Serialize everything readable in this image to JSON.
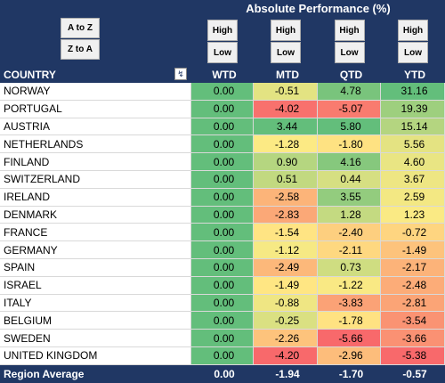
{
  "sort_buttons": [
    "A to Z",
    "Z to A"
  ],
  "header": {
    "title": "Absolute Performance (%)",
    "buttons": [
      {
        "high": "High",
        "low": "Low"
      },
      {
        "high": "High",
        "low": "Low"
      },
      {
        "high": "High",
        "low": "Low"
      },
      {
        "high": "High",
        "low": "Low"
      }
    ]
  },
  "columns": [
    "COUNTRY",
    "WTD",
    "MTD",
    "QTD",
    "YTD"
  ],
  "rows": [
    [
      "NORWAY",
      "0.00",
      "-0.51",
      "4.78",
      "31.16"
    ],
    [
      "PORTUGAL",
      "0.00",
      "-4.02",
      "-5.07",
      "19.39"
    ],
    [
      "AUSTRIA",
      "0.00",
      "3.44",
      "5.80",
      "15.14"
    ],
    [
      "NETHERLANDS",
      "0.00",
      "-1.28",
      "-1.80",
      "5.56"
    ],
    [
      "FINLAND",
      "0.00",
      "0.90",
      "4.16",
      "4.60"
    ],
    [
      "SWITZERLAND",
      "0.00",
      "0.51",
      "0.44",
      "3.67"
    ],
    [
      "IRELAND",
      "0.00",
      "-2.58",
      "3.55",
      "2.59"
    ],
    [
      "DENMARK",
      "0.00",
      "-2.83",
      "1.28",
      "1.23"
    ],
    [
      "FRANCE",
      "0.00",
      "-1.54",
      "-2.40",
      "-0.72"
    ],
    [
      "GERMANY",
      "0.00",
      "-1.12",
      "-2.11",
      "-1.49"
    ],
    [
      "SPAIN",
      "0.00",
      "-2.49",
      "0.73",
      "-2.17"
    ],
    [
      "ISRAEL",
      "0.00",
      "-1.49",
      "-1.22",
      "-2.48"
    ],
    [
      "ITALY",
      "0.00",
      "-0.88",
      "-3.83",
      "-2.81"
    ],
    [
      "BELGIUM",
      "0.00",
      "-0.25",
      "-1.78",
      "-3.54"
    ],
    [
      "SWEDEN",
      "0.00",
      "-2.26",
      "-5.66",
      "-3.66"
    ],
    [
      "UNITED KINGDOM",
      "0.00",
      "-4.20",
      "-2.96",
      "-5.38"
    ]
  ],
  "footer": [
    "Region Average",
    "0.00",
    "-1.94",
    "-1.70",
    "-0.57"
  ],
  "color_scale": [
    "#f8696b",
    "#ffeb84",
    "#63be7b"
  ]
}
